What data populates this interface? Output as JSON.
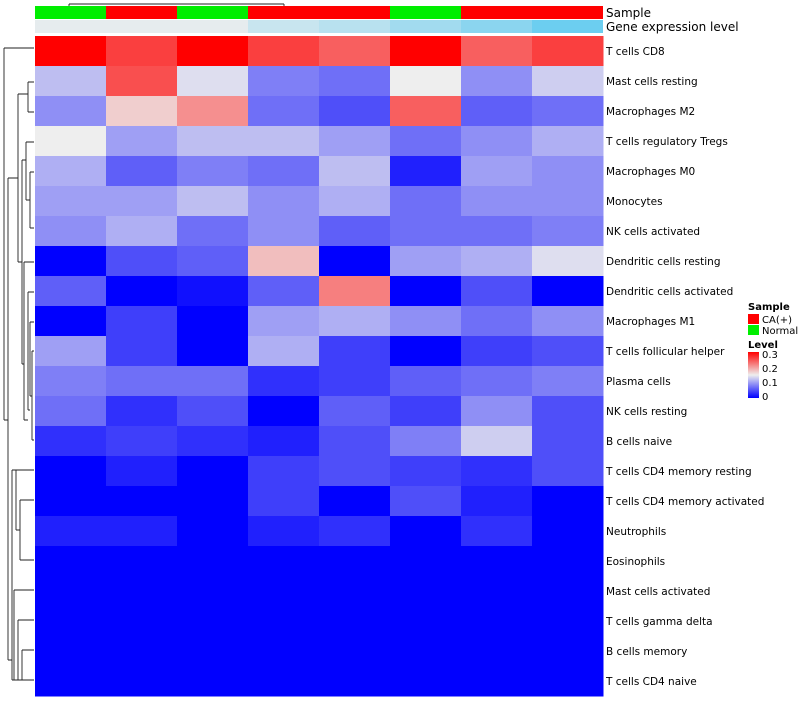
{
  "chart_data": {
    "type": "heatmap",
    "title": "",
    "annotation_tracks": {
      "sample_label": "Sample",
      "gene_expression_label": "Gene expression level"
    },
    "columns": [
      {
        "sample": "Normal",
        "gene_expression": 0.05
      },
      {
        "sample": "CA(+)",
        "gene_expression": 0.05
      },
      {
        "sample": "Normal",
        "gene_expression": 0.05
      },
      {
        "sample": "CA(+)",
        "gene_expression": 0.25
      },
      {
        "sample": "CA(+)",
        "gene_expression": 0.35
      },
      {
        "sample": "Normal",
        "gene_expression": 0.5
      },
      {
        "sample": "CA(+)",
        "gene_expression": 0.65
      },
      {
        "sample": "CA(+)",
        "gene_expression": 0.85
      }
    ],
    "rows": [
      "T cells CD8",
      "Mast cells resting",
      "Macrophages M2",
      "T cells regulatory  Tregs",
      "Macrophages M0",
      "Monocytes",
      "NK cells activated",
      "Dendritic cells resting",
      "Dendritic cells activated",
      "Macrophages M1",
      "T cells follicular helper",
      "Plasma cells",
      "NK cells resting",
      "B cells naive",
      "T cells CD4 memory resting",
      "T cells CD4 memory activated",
      "Neutrophils",
      "Eosinophils",
      "Mast cells activated",
      "T cells gamma delta",
      "B cells memory",
      "T cells CD4 naive"
    ],
    "values": [
      [
        0.3,
        0.26,
        0.3,
        0.26,
        0.24,
        0.3,
        0.24,
        0.26
      ],
      [
        0.12,
        0.25,
        0.14,
        0.08,
        0.07,
        0.15,
        0.09,
        0.13
      ],
      [
        0.09,
        0.17,
        0.21,
        0.07,
        0.05,
        0.24,
        0.06,
        0.07
      ],
      [
        0.15,
        0.1,
        0.12,
        0.12,
        0.1,
        0.07,
        0.09,
        0.11
      ],
      [
        0.11,
        0.06,
        0.08,
        0.07,
        0.12,
        0.02,
        0.1,
        0.09
      ],
      [
        0.1,
        0.1,
        0.12,
        0.09,
        0.11,
        0.07,
        0.09,
        0.09
      ],
      [
        0.09,
        0.11,
        0.07,
        0.09,
        0.06,
        0.07,
        0.07,
        0.08
      ],
      [
        0.0,
        0.05,
        0.06,
        0.18,
        0.0,
        0.1,
        0.11,
        0.14
      ],
      [
        0.06,
        0.0,
        0.01,
        0.06,
        0.22,
        0.0,
        0.05,
        0.0
      ],
      [
        0.0,
        0.04,
        0.0,
        0.1,
        0.11,
        0.09,
        0.07,
        0.09
      ],
      [
        0.1,
        0.04,
        0.0,
        0.11,
        0.04,
        0.0,
        0.04,
        0.05
      ],
      [
        0.08,
        0.07,
        0.07,
        0.03,
        0.04,
        0.06,
        0.07,
        0.08
      ],
      [
        0.07,
        0.03,
        0.05,
        0.0,
        0.06,
        0.04,
        0.09,
        0.05
      ],
      [
        0.03,
        0.04,
        0.03,
        0.02,
        0.05,
        0.08,
        0.13,
        0.05
      ],
      [
        0.0,
        0.02,
        0.0,
        0.04,
        0.05,
        0.04,
        0.03,
        0.05
      ],
      [
        0.0,
        0.0,
        0.0,
        0.04,
        0.0,
        0.05,
        0.02,
        0.0
      ],
      [
        0.02,
        0.02,
        0.0,
        0.02,
        0.03,
        0.0,
        0.03,
        0.0
      ],
      [
        0.0,
        0.0,
        0.0,
        0.0,
        0.0,
        0.0,
        0.0,
        0.0
      ],
      [
        0.0,
        0.0,
        0.0,
        0.0,
        0.0,
        0.0,
        0.0,
        0.0
      ],
      [
        0.0,
        0.0,
        0.0,
        0.0,
        0.0,
        0.0,
        0.0,
        0.0
      ],
      [
        0.0,
        0.0,
        0.0,
        0.0,
        0.0,
        0.0,
        0.0,
        0.0
      ],
      [
        0.0,
        0.0,
        0.0,
        0.0,
        0.0,
        0.0,
        0.0,
        0.0
      ]
    ],
    "color_scale": {
      "low": "#0000ff",
      "mid": "#eeeeee",
      "high": "#ff0000",
      "min": 0,
      "max": 0.3
    },
    "legend_sample": {
      "title": "Sample",
      "items": [
        {
          "label": "CA(+)",
          "color": "#ff0000"
        },
        {
          "label": "Normal",
          "color": "#00ee00"
        }
      ]
    },
    "legend_level": {
      "title": "Level",
      "ticks": [
        "0.3",
        "0.2",
        "0.1",
        "0"
      ]
    },
    "gene_expression_colors": {
      "low": "#eeeeee",
      "high": "#55c8f0"
    }
  }
}
